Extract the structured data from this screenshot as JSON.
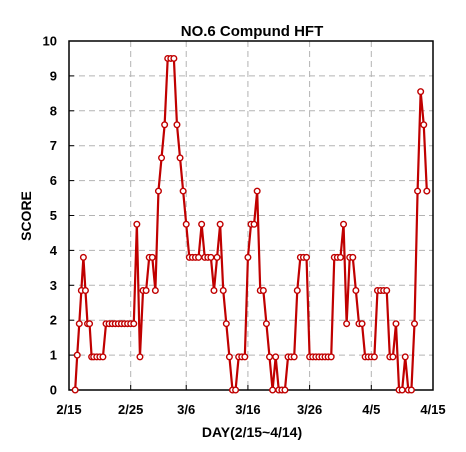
{
  "chart_data": {
    "type": "line",
    "title": "NO.6 Compund HFT",
    "xlabel": "DAY(2/15~4/14)",
    "ylabel": "SCORE",
    "ylim": [
      0,
      10
    ],
    "xlim": [
      "2/15",
      "4/15"
    ],
    "y_ticks": [
      "0",
      "1",
      "2",
      "3",
      "4",
      "5",
      "6",
      "7",
      "8",
      "9",
      "10"
    ],
    "x_ticks": [
      "2/15",
      "2/25",
      "3/6",
      "3/16",
      "3/26",
      "4/5",
      "4/15"
    ],
    "grid": true,
    "line_color": "#c00000",
    "x": [
      "2/16",
      "2/16",
      "2/16",
      "2/17",
      "2/17",
      "2/17",
      "2/18",
      "2/18",
      "2/18",
      "2/19",
      "2/19",
      "2/20",
      "2/20",
      "2/21",
      "2/21",
      "2/22",
      "2/22",
      "2/23",
      "2/23",
      "2/24",
      "2/24",
      "2/25",
      "2/25",
      "2/26",
      "2/26",
      "2/27",
      "2/27",
      "2/28",
      "2/28",
      "3/1",
      "3/1",
      "3/2",
      "3/2",
      "3/3",
      "3/3",
      "3/4",
      "3/4",
      "3/5",
      "3/5",
      "3/6",
      "3/6",
      "3/7",
      "3/7",
      "3/8",
      "3/8",
      "3/9",
      "3/9",
      "3/10",
      "3/10",
      "3/11",
      "3/11",
      "3/12",
      "3/12",
      "3/13",
      "3/13",
      "3/14",
      "3/14",
      "3/15",
      "3/15",
      "3/16",
      "3/16",
      "3/17",
      "3/17",
      "3/18",
      "3/18",
      "3/19",
      "3/19",
      "3/20",
      "3/20",
      "3/21",
      "3/21",
      "3/22",
      "3/22",
      "3/23",
      "3/23",
      "3/24",
      "3/24",
      "3/25",
      "3/25",
      "3/26",
      "3/26",
      "3/27",
      "3/27",
      "3/28",
      "3/28",
      "3/29",
      "3/29",
      "3/30",
      "3/30",
      "3/31",
      "3/31",
      "4/1",
      "4/1",
      "4/2",
      "4/2",
      "4/3",
      "4/3",
      "4/4",
      "4/4",
      "4/5",
      "4/5",
      "4/6",
      "4/6",
      "4/7",
      "4/7",
      "4/8",
      "4/8",
      "4/9",
      "4/9",
      "4/10",
      "4/10",
      "4/11",
      "4/11",
      "4/12",
      "4/12",
      "4/13",
      "4/13",
      "4/14"
    ],
    "series": [
      {
        "values": [
          0,
          1,
          1.9,
          2.85,
          3.8,
          2.85,
          1.9,
          1.9,
          0.95,
          0.95,
          0.95,
          0.95,
          0.95,
          1.9,
          1.9,
          1.9,
          1.9,
          1.9,
          1.9,
          1.9,
          1.9,
          1.9,
          1.9,
          4.75,
          0.95,
          2.85,
          2.85,
          3.8,
          3.8,
          2.85,
          5.7,
          6.65,
          7.6,
          9.5,
          9.5,
          9.5,
          7.6,
          6.65,
          5.7,
          4.75,
          3.8,
          3.8,
          3.8,
          3.8,
          4.75,
          3.8,
          3.8,
          3.8,
          2.85,
          3.8,
          4.75,
          2.85,
          1.9,
          0.95,
          0,
          0,
          0.95,
          0.95,
          0.95,
          3.8,
          4.75,
          4.75,
          5.7,
          2.85,
          2.85,
          1.9,
          0.95,
          0,
          0.95,
          0,
          0,
          0,
          0.95,
          0.95,
          0.95,
          2.85,
          3.8,
          3.8,
          3.8,
          0.95,
          0.95,
          0.95,
          0.95,
          0.95,
          0.95,
          0.95,
          0.95,
          3.8,
          3.8,
          3.8,
          4.75,
          1.9,
          3.8,
          3.8,
          2.85,
          1.9,
          1.9,
          0.95,
          0.95,
          0.95,
          0.95,
          2.85,
          2.85,
          2.85,
          2.85,
          0.95,
          0.95,
          1.9,
          0,
          0,
          0.95,
          0,
          0,
          1.9,
          5.7,
          8.55,
          7.6,
          5.7
        ]
      }
    ]
  }
}
